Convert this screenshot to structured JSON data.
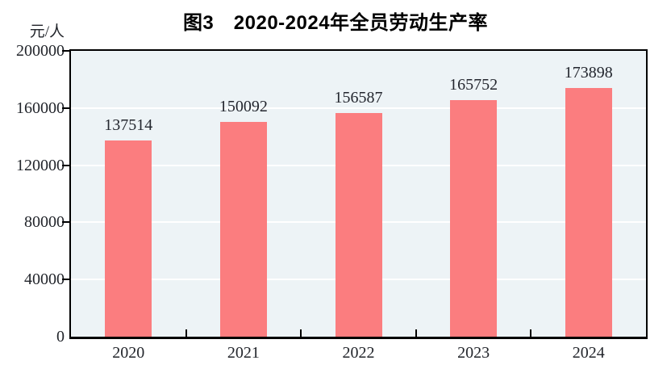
{
  "title": "图3　2020-2024年全员劳动生产率",
  "unit_label": "元/人",
  "chart_data": {
    "type": "bar",
    "title": "图3　2020-2024年全员劳动生产率",
    "categories": [
      "2020",
      "2021",
      "2022",
      "2023",
      "2024"
    ],
    "values": [
      137514,
      150092,
      156587,
      165752,
      173898
    ],
    "value_labels": [
      "137514",
      "150092",
      "156587",
      "165752",
      "173898"
    ],
    "xlabel": "",
    "ylabel": "元/人",
    "ylim": [
      0,
      200000
    ],
    "yticks": [
      0,
      40000,
      80000,
      120000,
      160000,
      200000
    ],
    "ytick_labels": [
      "0",
      "40000",
      "80000",
      "120000",
      "160000",
      "200000"
    ],
    "grid": "horizontal",
    "legend_position": "none"
  },
  "colors": {
    "bar_fill": "#fb7d7f",
    "plot_background": "#edf3f6",
    "gridline": "#ffffff",
    "axis": "#000000",
    "text": "#22252b"
  }
}
